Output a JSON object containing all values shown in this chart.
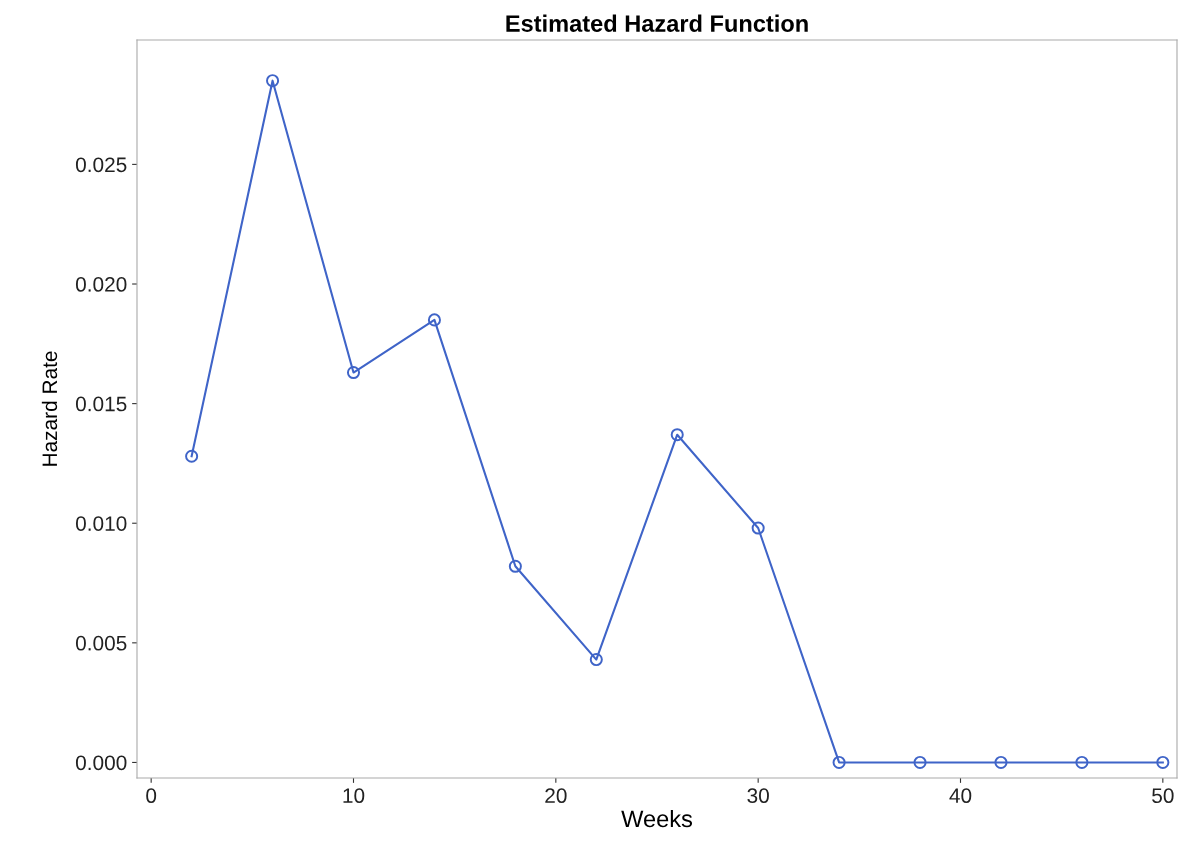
{
  "chart_data": {
    "type": "line",
    "title": "Estimated Hazard Function",
    "xlabel": "Weeks",
    "ylabel": "Hazard Rate",
    "x": [
      2,
      6,
      10,
      14,
      18,
      22,
      26,
      30,
      34,
      38,
      42,
      46,
      50
    ],
    "series": [
      {
        "color": "#3f64c8",
        "values": [
          0.0128,
          0.0285,
          0.0163,
          0.0185,
          0.0082,
          0.0043,
          0.0137,
          0.0098,
          0,
          0,
          0,
          0,
          0
        ]
      }
    ],
    "xlim": [
      -0.7,
      50.7
    ],
    "ylim": [
      -0.00065,
      0.0302
    ],
    "xticks": [
      0,
      10,
      20,
      30,
      40,
      50
    ],
    "yticks": [
      {
        "value": 0,
        "label": "0.000"
      },
      {
        "value": 0.005,
        "label": "0.005"
      },
      {
        "value": 0.01,
        "label": "0.010"
      },
      {
        "value": 0.015,
        "label": "0.015"
      },
      {
        "value": 0.02,
        "label": "0.020"
      },
      {
        "value": 0.025,
        "label": "0.025"
      }
    ],
    "grid": false,
    "legend": false,
    "marker": "circle",
    "line_style": "solid"
  }
}
